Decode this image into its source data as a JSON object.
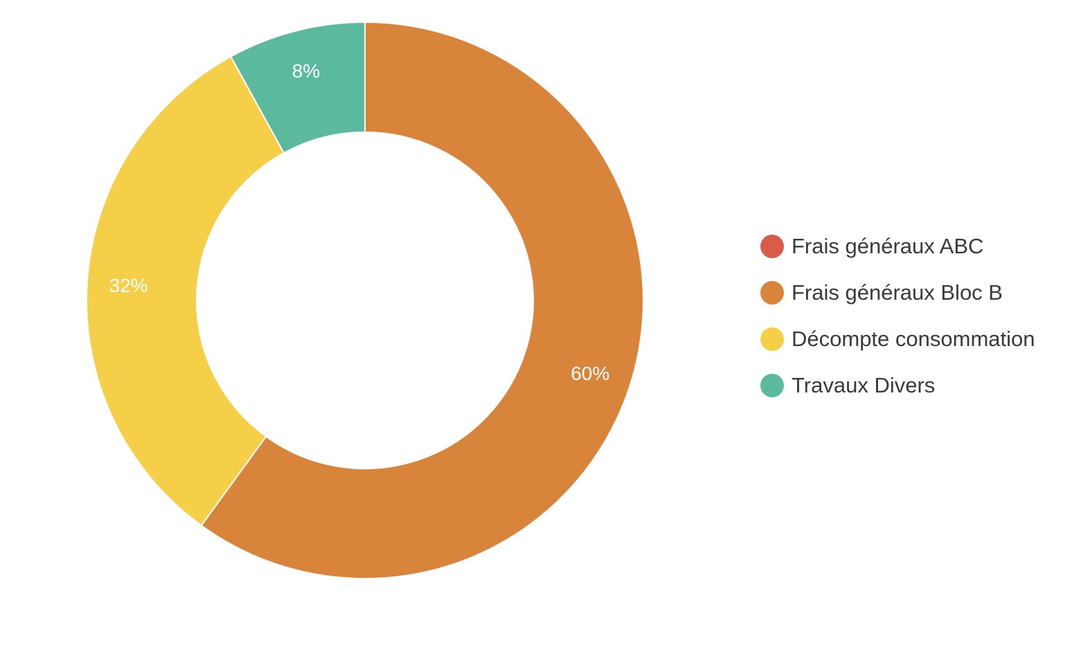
{
  "chart_data": {
    "type": "pie",
    "variant": "donut",
    "categories": [
      "Frais généraux ABC",
      "Frais généraux Bloc B",
      "Décompte consommation",
      "Travaux Divers"
    ],
    "values": [
      0,
      60,
      32,
      8
    ],
    "labels": [
      "",
      "60%",
      "32%",
      "8%"
    ],
    "colors": [
      "#d95b49",
      "#d8843b",
      "#f5cf48",
      "#5bba9e"
    ],
    "legend_placement": "right"
  }
}
